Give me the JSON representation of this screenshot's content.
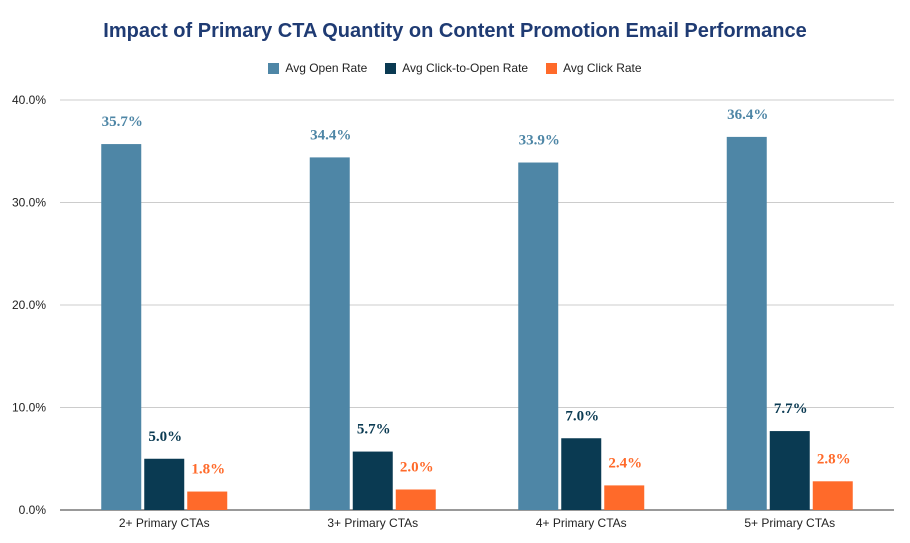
{
  "chart_data": {
    "type": "bar",
    "title": "Impact of Primary CTA Quantity on Content Promotion Email Performance",
    "categories": [
      "2+ Primary CTAs",
      "3+ Primary CTAs",
      "4+ Primary CTAs",
      "5+ Primary CTAs"
    ],
    "series": [
      {
        "name": "Avg Open Rate",
        "color": "#4e86a6",
        "values": [
          35.7,
          34.4,
          33.9,
          36.4
        ],
        "labels": [
          "35.7%",
          "34.4%",
          "33.9%",
          "36.4%"
        ]
      },
      {
        "name": "Avg Click-to-Open Rate",
        "color": "#0a3a52",
        "values": [
          5.0,
          5.7,
          7.0,
          7.7
        ],
        "labels": [
          "5.0%",
          "5.7%",
          "7.0%",
          "7.7%"
        ]
      },
      {
        "name": "Avg Click Rate",
        "color": "#ff6a2a",
        "values": [
          1.8,
          2.0,
          2.4,
          2.8
        ],
        "labels": [
          "1.8%",
          "2.0%",
          "2.4%",
          "2.8%"
        ]
      }
    ],
    "yticks": [
      "0.0%",
      "10.0%",
      "20.0%",
      "30.0%",
      "40.0%"
    ],
    "ytick_values": [
      0,
      10,
      20,
      30,
      40
    ],
    "ylim": [
      0,
      40
    ],
    "xlabel": "",
    "ylabel": "",
    "grid": true,
    "legend_position": "top-center"
  }
}
